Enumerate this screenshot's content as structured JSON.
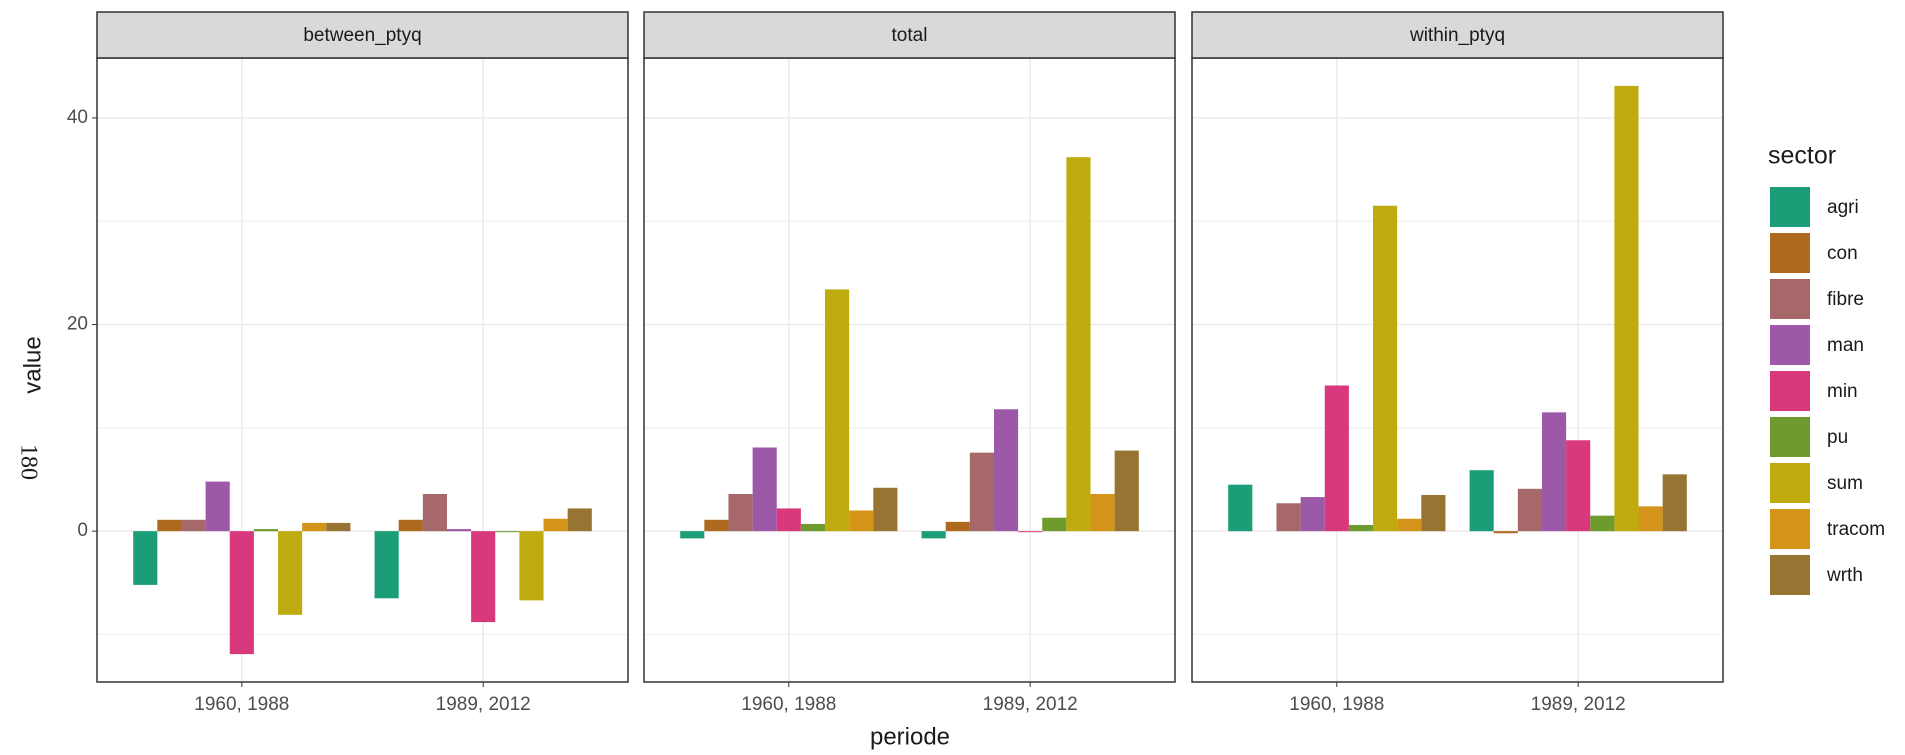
{
  "chart_data": [
    {
      "type": "bar",
      "title": "between_ptyq",
      "categories": [
        "1960, 1988",
        "1989, 2012"
      ],
      "ylim": [
        -14.6,
        45.8
      ],
      "yticks": [
        0,
        20,
        40
      ],
      "grid": true,
      "series": [
        {
          "name": "agri",
          "color": "#1b9e77",
          "values": [
            -5.2,
            -6.5
          ]
        },
        {
          "name": "con",
          "color": "#ad6a1f",
          "values": [
            1.1,
            1.1
          ]
        },
        {
          "name": "fibre",
          "color": "#a6686a",
          "values": [
            1.1,
            3.6
          ]
        },
        {
          "name": "man",
          "color": "#9b59a8",
          "values": [
            4.8,
            0.2
          ]
        },
        {
          "name": "min",
          "color": "#d9387c",
          "values": [
            -11.9,
            -8.8
          ]
        },
        {
          "name": "pu",
          "color": "#6f9a2e",
          "values": [
            0.2,
            -0.1
          ]
        },
        {
          "name": "sum",
          "color": "#bfab0f",
          "values": [
            -8.1,
            -6.7
          ]
        },
        {
          "name": "tracom",
          "color": "#d4941a",
          "values": [
            0.8,
            1.2
          ]
        },
        {
          "name": "wrth",
          "color": "#977431",
          "values": [
            0.8,
            2.2
          ]
        }
      ]
    },
    {
      "type": "bar",
      "title": "total",
      "categories": [
        "1960, 1988",
        "1989, 2012"
      ],
      "ylim": [
        -14.6,
        45.8
      ],
      "yticks": [
        0,
        20,
        40
      ],
      "grid": true,
      "series": [
        {
          "name": "agri",
          "color": "#1b9e77",
          "values": [
            -0.7,
            -0.7
          ]
        },
        {
          "name": "con",
          "color": "#ad6a1f",
          "values": [
            1.1,
            0.9
          ]
        },
        {
          "name": "fibre",
          "color": "#a6686a",
          "values": [
            3.6,
            7.6
          ]
        },
        {
          "name": "man",
          "color": "#9b59a8",
          "values": [
            8.1,
            11.8
          ]
        },
        {
          "name": "min",
          "color": "#d9387c",
          "values": [
            2.2,
            -0.1
          ]
        },
        {
          "name": "pu",
          "color": "#6f9a2e",
          "values": [
            0.7,
            1.3
          ]
        },
        {
          "name": "sum",
          "color": "#bfab0f",
          "values": [
            23.4,
            36.2
          ]
        },
        {
          "name": "tracom",
          "color": "#d4941a",
          "values": [
            2.0,
            3.6
          ]
        },
        {
          "name": "wrth",
          "color": "#977431",
          "values": [
            4.2,
            7.8
          ]
        }
      ]
    },
    {
      "type": "bar",
      "title": "within_ptyq",
      "categories": [
        "1960, 1988",
        "1989, 2012"
      ],
      "ylim": [
        -14.6,
        45.8
      ],
      "yticks": [
        0,
        20,
        40
      ],
      "grid": true,
      "series": [
        {
          "name": "agri",
          "color": "#1b9e77",
          "values": [
            4.5,
            5.9
          ]
        },
        {
          "name": "con",
          "color": "#ad6a1f",
          "values": [
            0,
            -0.2
          ]
        },
        {
          "name": "fibre",
          "color": "#a6686a",
          "values": [
            2.7,
            4.1
          ]
        },
        {
          "name": "man",
          "color": "#9b59a8",
          "values": [
            3.3,
            11.5
          ]
        },
        {
          "name": "min",
          "color": "#d9387c",
          "values": [
            14.1,
            8.8
          ]
        },
        {
          "name": "pu",
          "color": "#6f9a2e",
          "values": [
            0.6,
            1.5
          ]
        },
        {
          "name": "sum",
          "color": "#bfab0f",
          "values": [
            31.5,
            43.1
          ]
        },
        {
          "name": "tracom",
          "color": "#d4941a",
          "values": [
            1.2,
            2.4
          ]
        },
        {
          "name": "wrth",
          "color": "#977431",
          "values": [
            3.5,
            5.5
          ]
        }
      ]
    }
  ],
  "shared": {
    "x_label": "periode",
    "y_label": "value",
    "legend_title": "sector",
    "annotation": "180"
  }
}
